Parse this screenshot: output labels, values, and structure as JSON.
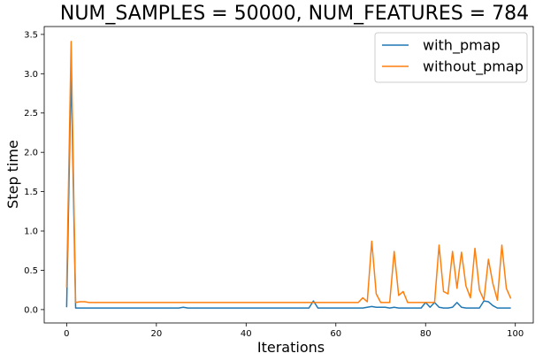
{
  "chart_data": {
    "type": "line",
    "title": "NUM_SAMPLES = 50000, NUM_FEATURES = 784",
    "xlabel": "Iterations",
    "ylabel": "Step time",
    "xlim": [
      -5,
      104
    ],
    "ylim": [
      -0.17,
      3.6
    ],
    "xticks": [
      0,
      20,
      40,
      60,
      80,
      100
    ],
    "yticks": [
      0.0,
      0.5,
      1.0,
      1.5,
      2.0,
      2.5,
      3.0,
      3.5
    ],
    "legend_position": "top-right",
    "grid": false,
    "series": [
      {
        "name": "with_pmap",
        "color": "#1f77b4",
        "x": [
          0,
          1,
          2,
          3,
          4,
          5,
          6,
          7,
          8,
          9,
          10,
          11,
          12,
          13,
          14,
          15,
          16,
          17,
          18,
          19,
          20,
          21,
          22,
          23,
          24,
          25,
          26,
          27,
          28,
          29,
          30,
          31,
          32,
          33,
          34,
          35,
          36,
          37,
          38,
          39,
          40,
          41,
          42,
          43,
          44,
          45,
          46,
          47,
          48,
          49,
          50,
          51,
          52,
          53,
          54,
          55,
          56,
          57,
          58,
          59,
          60,
          61,
          62,
          63,
          64,
          65,
          66,
          67,
          68,
          69,
          70,
          71,
          72,
          73,
          74,
          75,
          76,
          77,
          78,
          79,
          80,
          81,
          82,
          83,
          84,
          85,
          86,
          87,
          88,
          89,
          90,
          91,
          92,
          93,
          94,
          95,
          96,
          97,
          98,
          99
        ],
        "values": [
          0.03,
          3.05,
          0.02,
          0.02,
          0.02,
          0.02,
          0.02,
          0.02,
          0.02,
          0.02,
          0.02,
          0.02,
          0.02,
          0.02,
          0.02,
          0.02,
          0.02,
          0.02,
          0.02,
          0.02,
          0.02,
          0.02,
          0.02,
          0.02,
          0.02,
          0.02,
          0.03,
          0.02,
          0.02,
          0.02,
          0.02,
          0.02,
          0.02,
          0.02,
          0.02,
          0.02,
          0.02,
          0.02,
          0.02,
          0.02,
          0.02,
          0.02,
          0.02,
          0.02,
          0.02,
          0.02,
          0.02,
          0.02,
          0.02,
          0.02,
          0.02,
          0.02,
          0.02,
          0.02,
          0.02,
          0.11,
          0.02,
          0.02,
          0.02,
          0.02,
          0.02,
          0.02,
          0.02,
          0.02,
          0.02,
          0.02,
          0.02,
          0.03,
          0.04,
          0.03,
          0.03,
          0.03,
          0.02,
          0.03,
          0.02,
          0.02,
          0.02,
          0.02,
          0.02,
          0.02,
          0.09,
          0.03,
          0.09,
          0.03,
          0.02,
          0.02,
          0.03,
          0.09,
          0.03,
          0.02,
          0.02,
          0.02,
          0.02,
          0.11,
          0.1,
          0.05,
          0.02,
          0.02,
          0.02,
          0.02
        ]
      },
      {
        "name": "without_pmap",
        "color": "#ff7f0e",
        "x": [
          0,
          1,
          2,
          3,
          4,
          5,
          6,
          7,
          8,
          9,
          10,
          11,
          12,
          13,
          14,
          15,
          16,
          17,
          18,
          19,
          20,
          21,
          22,
          23,
          24,
          25,
          26,
          27,
          28,
          29,
          30,
          31,
          32,
          33,
          34,
          35,
          36,
          37,
          38,
          39,
          40,
          41,
          42,
          43,
          44,
          45,
          46,
          47,
          48,
          49,
          50,
          51,
          52,
          53,
          54,
          55,
          56,
          57,
          58,
          59,
          60,
          61,
          62,
          63,
          64,
          65,
          66,
          67,
          68,
          69,
          70,
          71,
          72,
          73,
          74,
          75,
          76,
          77,
          78,
          79,
          80,
          81,
          82,
          83,
          84,
          85,
          86,
          87,
          88,
          89,
          90,
          91,
          92,
          93,
          94,
          95,
          96,
          97,
          98,
          99
        ],
        "values": [
          0.28,
          3.41,
          0.09,
          0.1,
          0.1,
          0.09,
          0.09,
          0.09,
          0.09,
          0.09,
          0.09,
          0.09,
          0.09,
          0.09,
          0.09,
          0.09,
          0.09,
          0.09,
          0.09,
          0.09,
          0.09,
          0.09,
          0.09,
          0.09,
          0.09,
          0.09,
          0.09,
          0.09,
          0.09,
          0.09,
          0.09,
          0.09,
          0.09,
          0.09,
          0.09,
          0.09,
          0.09,
          0.09,
          0.09,
          0.09,
          0.09,
          0.09,
          0.09,
          0.09,
          0.09,
          0.09,
          0.09,
          0.09,
          0.09,
          0.09,
          0.09,
          0.09,
          0.09,
          0.09,
          0.09,
          0.09,
          0.09,
          0.09,
          0.09,
          0.09,
          0.09,
          0.09,
          0.09,
          0.09,
          0.09,
          0.09,
          0.15,
          0.1,
          0.87,
          0.2,
          0.09,
          0.09,
          0.09,
          0.74,
          0.18,
          0.23,
          0.09,
          0.09,
          0.09,
          0.09,
          0.09,
          0.09,
          0.09,
          0.82,
          0.23,
          0.2,
          0.74,
          0.27,
          0.73,
          0.3,
          0.15,
          0.78,
          0.25,
          0.12,
          0.64,
          0.33,
          0.12,
          0.82,
          0.27,
          0.14
        ]
      }
    ]
  }
}
